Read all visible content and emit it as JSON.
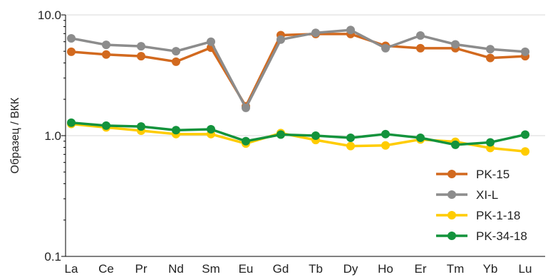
{
  "chart_data": {
    "type": "line",
    "ylabel": "Образец / ВКК",
    "yscale": "log",
    "ylim": [
      0.1,
      10.0
    ],
    "yticks": [
      "10.0",
      "1.0",
      "0.1"
    ],
    "grid": "horizontal",
    "legend_position": "bottom-right",
    "categories": [
      "La",
      "Ce",
      "Pr",
      "Nd",
      "Sm",
      "Eu",
      "Gd",
      "Tb",
      "Dy",
      "Ho",
      "Er",
      "Tm",
      "Yb",
      "Lu"
    ],
    "series": [
      {
        "name": "PK-15",
        "color": "#d2691e",
        "values": [
          4.95,
          4.7,
          4.55,
          4.1,
          5.35,
          1.75,
          6.8,
          6.95,
          6.95,
          5.55,
          5.3,
          5.3,
          4.4,
          4.55
        ]
      },
      {
        "name": "XI-L",
        "color": "#8c8c8c",
        "values": [
          6.4,
          5.65,
          5.5,
          5.0,
          6.0,
          1.7,
          6.25,
          7.1,
          7.5,
          5.3,
          6.75,
          5.7,
          5.2,
          4.95
        ]
      },
      {
        "name": "PK-1-18",
        "color": "#ffcc00",
        "values": [
          1.25,
          1.17,
          1.1,
          1.03,
          1.03,
          0.86,
          1.05,
          0.92,
          0.82,
          0.83,
          0.93,
          0.89,
          0.79,
          0.74
        ]
      },
      {
        "name": "PK-34-18",
        "color": "#13933c",
        "values": [
          1.28,
          1.21,
          1.19,
          1.11,
          1.13,
          0.9,
          1.02,
          1.0,
          0.96,
          1.03,
          0.96,
          0.84,
          0.88,
          1.02
        ]
      }
    ]
  }
}
